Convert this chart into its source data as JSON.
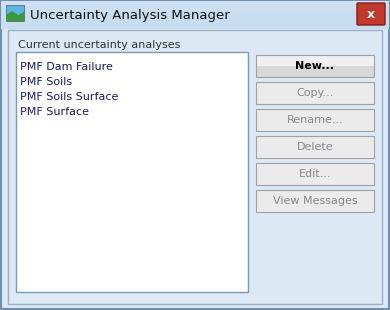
{
  "title": "Uncertainty Analysis Manager",
  "bg_outer": "#b8cfe0",
  "bg_dialog": "#dce8f4",
  "bg_panel": "#dce8f4",
  "bg_titlebar": "#c8ddf0",
  "close_btn_color": "#c0392b",
  "close_btn_border": "#8b1a1a",
  "list_label": "Current uncertainty analyses",
  "list_items": [
    "PMF Dam Failure",
    "PMF Soils",
    "PMF Soils Surface",
    "PMF Surface"
  ],
  "list_text_color": "#1a1a6e",
  "list_box_bg": "#ffffff",
  "list_box_border": "#7a9ab5",
  "buttons": [
    "New...",
    "Copy...",
    "Rename...",
    "Delete",
    "Edit...",
    "View Messages"
  ],
  "button_new_bg": "#e0e0e0",
  "button_new_text": "#000000",
  "button_disabled_bg": "#ebebeb",
  "button_disabled_text": "#888888",
  "button_border": "#a0a0a0",
  "figsize": [
    3.9,
    3.1
  ],
  "dpi": 100
}
